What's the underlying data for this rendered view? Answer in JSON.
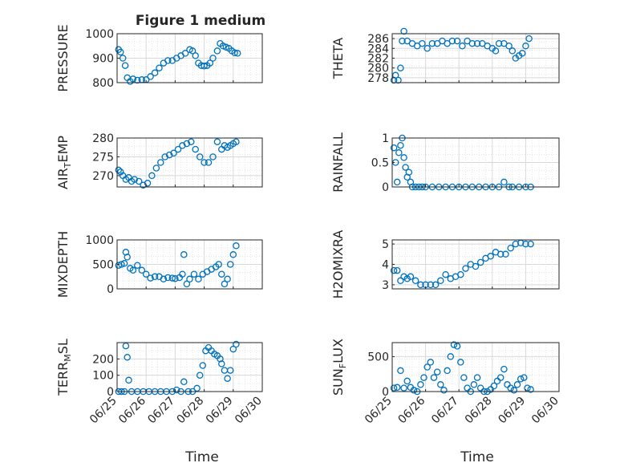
{
  "figure": {
    "title": "Figure 1 medium",
    "xlabel": "Time",
    "x_tick_labels": [
      "06/25",
      "06/26",
      "06/27",
      "06/28",
      "06/29",
      "06/30"
    ]
  },
  "colors": {
    "marker": "#0072BD",
    "axes": "#262626",
    "grid": "#d8d8d8"
  },
  "chart_data": [
    {
      "type": "scatter",
      "ylabel": "PRESSURE",
      "ylim": [
        800,
        1000
      ],
      "yticks": [
        800,
        900,
        1000
      ],
      "ytick_labels": [
        "800",
        "900",
        "1000"
      ],
      "xlim": [
        0,
        5
      ],
      "grid": true,
      "x": [
        0.05,
        0.12,
        0.2,
        0.28,
        0.35,
        0.45,
        0.55,
        0.7,
        0.85,
        1.0,
        1.15,
        1.3,
        1.45,
        1.6,
        1.75,
        1.9,
        2.05,
        2.2,
        2.35,
        2.5,
        2.6,
        2.7,
        2.8,
        2.9,
        3.0,
        3.1,
        3.2,
        3.3,
        3.45,
        3.55,
        3.65,
        3.75,
        3.85,
        3.95,
        4.05,
        4.15
      ],
      "y": [
        935,
        925,
        900,
        870,
        820,
        805,
        815,
        810,
        812,
        812,
        825,
        840,
        860,
        880,
        890,
        890,
        900,
        910,
        920,
        935,
        930,
        910,
        880,
        870,
        868,
        870,
        880,
        900,
        930,
        960,
        950,
        945,
        940,
        930,
        922,
        920
      ]
    },
    {
      "type": "scatter",
      "ylabel": "THETA",
      "ylim": [
        277,
        287
      ],
      "yticks": [
        278,
        280,
        282,
        284,
        286
      ],
      "ytick_labels": [
        "278",
        "280",
        "282",
        "284",
        "286"
      ],
      "xlim": [
        0,
        5
      ],
      "grid": true,
      "x": [
        0.05,
        0.1,
        0.18,
        0.25,
        0.3,
        0.35,
        0.45,
        0.6,
        0.75,
        0.9,
        1.05,
        1.2,
        1.35,
        1.5,
        1.65,
        1.8,
        1.95,
        2.1,
        2.25,
        2.4,
        2.55,
        2.7,
        2.85,
        3.0,
        3.1,
        3.2,
        3.35,
        3.5,
        3.6,
        3.7,
        3.8,
        3.9,
        4.0,
        4.1
      ],
      "y": [
        277.5,
        278.5,
        277.5,
        280,
        285.5,
        287.5,
        285.5,
        285,
        284.5,
        285,
        284,
        285,
        285,
        285.5,
        285,
        285.5,
        285.5,
        284.5,
        285.5,
        285,
        285,
        285,
        284.5,
        284,
        283.5,
        285,
        285,
        284.5,
        283.5,
        282,
        282.5,
        283,
        284.5,
        286
      ]
    },
    {
      "type": "scatter",
      "ylabel": "AIR_TEMP",
      "ylim": [
        267,
        280
      ],
      "yticks": [
        270,
        275,
        280
      ],
      "ytick_labels": [
        "270",
        "275",
        "280"
      ],
      "xlim": [
        0,
        5
      ],
      "grid": true,
      "x": [
        0.05,
        0.12,
        0.2,
        0.3,
        0.4,
        0.5,
        0.6,
        0.75,
        0.9,
        1.05,
        1.2,
        1.35,
        1.5,
        1.65,
        1.8,
        1.95,
        2.1,
        2.25,
        2.4,
        2.55,
        2.7,
        2.85,
        3.0,
        3.15,
        3.3,
        3.45,
        3.6,
        3.7,
        3.8,
        3.9,
        4.0,
        4.1
      ],
      "y": [
        271.5,
        271,
        270,
        269,
        269.5,
        268.5,
        269,
        268.5,
        267.5,
        268,
        270,
        272,
        273.5,
        275,
        275.5,
        276,
        277,
        278,
        278.5,
        279,
        277,
        275,
        273.5,
        273.5,
        275,
        279,
        277,
        278,
        277.5,
        278,
        278.5,
        279
      ]
    },
    {
      "type": "scatter",
      "ylabel": "RAINFALL",
      "ylim": [
        0,
        1
      ],
      "yticks": [
        0,
        0.5,
        1
      ],
      "ytick_labels": [
        "0",
        "0.5",
        "1"
      ],
      "xlim": [
        0,
        5
      ],
      "grid": true,
      "x": [
        0.05,
        0.1,
        0.15,
        0.2,
        0.25,
        0.3,
        0.35,
        0.4,
        0.45,
        0.5,
        0.55,
        0.6,
        0.7,
        0.8,
        0.9,
        1.0,
        1.2,
        1.4,
        1.6,
        1.8,
        2.0,
        2.2,
        2.4,
        2.6,
        2.8,
        3.0,
        3.2,
        3.35,
        3.5,
        3.6,
        3.8,
        4.0,
        4.15
      ],
      "y": [
        0.8,
        0.5,
        0.1,
        0.7,
        0.85,
        1.0,
        0.6,
        0.4,
        0.2,
        0.3,
        0.1,
        0,
        0,
        0,
        0,
        0,
        0,
        0,
        0,
        0,
        0,
        0,
        0,
        0,
        0,
        0,
        0,
        0.1,
        0,
        0,
        0,
        0,
        0
      ]
    },
    {
      "type": "scatter",
      "ylabel": "MIXDEPTH",
      "ylim": [
        0,
        1000
      ],
      "yticks": [
        0,
        500,
        1000
      ],
      "ytick_labels": [
        "0",
        "500",
        "1000"
      ],
      "xlim": [
        0,
        5
      ],
      "grid": true,
      "x": [
        0.05,
        0.15,
        0.25,
        0.3,
        0.35,
        0.45,
        0.55,
        0.7,
        0.85,
        1.0,
        1.15,
        1.3,
        1.45,
        1.6,
        1.75,
        1.9,
        2.0,
        2.15,
        2.25,
        2.3,
        2.4,
        2.5,
        2.65,
        2.8,
        2.95,
        3.1,
        3.25,
        3.4,
        3.5,
        3.6,
        3.7,
        3.8,
        3.9,
        4.0,
        4.1
      ],
      "y": [
        480,
        500,
        520,
        750,
        650,
        420,
        380,
        480,
        380,
        300,
        220,
        250,
        250,
        200,
        230,
        220,
        210,
        230,
        300,
        700,
        100,
        200,
        300,
        200,
        300,
        350,
        400,
        450,
        500,
        300,
        100,
        200,
        500,
        700,
        880
      ]
    },
    {
      "type": "scatter",
      "ylabel": "H2OMIXRA",
      "ylim": [
        2.8,
        5.2
      ],
      "yticks": [
        3,
        4,
        5
      ],
      "ytick_labels": [
        "3",
        "4",
        "5"
      ],
      "xlim": [
        0,
        5
      ],
      "grid": true,
      "x": [
        0.05,
        0.15,
        0.25,
        0.35,
        0.45,
        0.55,
        0.7,
        0.85,
        1.0,
        1.15,
        1.3,
        1.45,
        1.6,
        1.75,
        1.9,
        2.05,
        2.2,
        2.35,
        2.5,
        2.65,
        2.8,
        2.95,
        3.1,
        3.25,
        3.4,
        3.55,
        3.7,
        3.85,
        4.0,
        4.15
      ],
      "y": [
        3.7,
        3.7,
        3.2,
        3.4,
        3.3,
        3.4,
        3.2,
        3.0,
        3.0,
        3.0,
        3.0,
        3.2,
        3.5,
        3.3,
        3.4,
        3.5,
        3.8,
        4.0,
        3.9,
        4.1,
        4.3,
        4.4,
        4.6,
        4.5,
        4.5,
        4.8,
        5.0,
        5.05,
        5.0,
        5.0
      ]
    },
    {
      "type": "scatter",
      "ylabel": "TERR_MSL",
      "ylim": [
        0,
        300
      ],
      "yticks": [
        0,
        100,
        200
      ],
      "ytick_labels": [
        "0",
        "100",
        "200"
      ],
      "xlim": [
        0,
        5
      ],
      "grid": true,
      "x": [
        0.05,
        0.15,
        0.25,
        0.3,
        0.35,
        0.4,
        0.5,
        0.7,
        0.9,
        1.1,
        1.3,
        1.5,
        1.7,
        1.9,
        2.05,
        2.2,
        2.3,
        2.45,
        2.6,
        2.75,
        2.85,
        2.95,
        3.05,
        3.15,
        3.25,
        3.35,
        3.45,
        3.55,
        3.6,
        3.7,
        3.8,
        3.9,
        4.0,
        4.1
      ],
      "y": [
        0,
        0,
        0,
        280,
        210,
        70,
        0,
        0,
        0,
        0,
        0,
        0,
        0,
        0,
        10,
        0,
        60,
        0,
        0,
        20,
        100,
        160,
        250,
        270,
        250,
        230,
        220,
        200,
        170,
        130,
        80,
        130,
        260,
        290
      ]
    },
    {
      "type": "scatter",
      "ylabel": "SUN_FLUX",
      "ylim": [
        0,
        700
      ],
      "yticks": [
        0,
        500
      ],
      "ytick_labels": [
        "0",
        "500"
      ],
      "xlim": [
        0,
        5
      ],
      "grid": true,
      "x": [
        0.05,
        0.15,
        0.25,
        0.35,
        0.45,
        0.55,
        0.65,
        0.75,
        0.85,
        0.95,
        1.05,
        1.15,
        1.25,
        1.35,
        1.45,
        1.55,
        1.65,
        1.75,
        1.85,
        1.95,
        2.05,
        2.15,
        2.25,
        2.35,
        2.45,
        2.55,
        2.65,
        2.75,
        2.85,
        2.95,
        3.05,
        3.15,
        3.25,
        3.35,
        3.45,
        3.55,
        3.65,
        3.75,
        3.85,
        3.95,
        4.05,
        4.15
      ],
      "y": [
        50,
        60,
        300,
        50,
        150,
        60,
        20,
        0,
        100,
        200,
        350,
        420,
        200,
        280,
        100,
        20,
        300,
        500,
        670,
        650,
        420,
        200,
        50,
        0,
        100,
        200,
        50,
        0,
        0,
        30,
        80,
        150,
        200,
        320,
        100,
        50,
        20,
        100,
        180,
        200,
        50,
        30
      ]
    }
  ]
}
